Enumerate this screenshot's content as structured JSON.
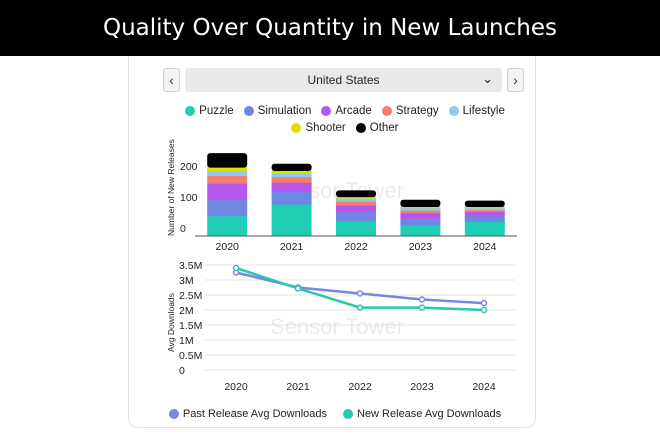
{
  "header": {
    "title": "Quality Over Quantity in New Launches"
  },
  "selector": {
    "country": "United States",
    "prev_icon": "chevron-left-icon",
    "next_icon": "chevron-right-icon"
  },
  "watermark": "Sensor Tower",
  "colors": {
    "Puzzle": "#1fcfb4",
    "Simulation": "#6f86e3",
    "Arcade": "#b457ea",
    "Strategy": "#f47e6f",
    "Lifestyle": "#8ec9f2",
    "Shooter": "#dfe000",
    "Other": "#000000",
    "past_line": "#7a86e0",
    "new_line": "#27c9ae"
  },
  "chart_data": [
    {
      "type": "bar",
      "stacked": true,
      "categories": [
        "2020",
        "2021",
        "2022",
        "2023",
        "2024"
      ],
      "ylabel": "Number of New Releases",
      "yticks": [
        "0",
        "100",
        "200"
      ],
      "ylim": [
        0,
        290
      ],
      "legend": [
        "Puzzle",
        "Simulation",
        "Arcade",
        "Strategy",
        "Lifestyle",
        "Shooter",
        "Other"
      ],
      "series": [
        {
          "name": "Puzzle",
          "values": [
            65,
            103,
            48,
            35,
            47
          ]
        },
        {
          "name": "Simulation",
          "values": [
            55,
            40,
            30,
            22,
            18
          ]
        },
        {
          "name": "Arcade",
          "values": [
            50,
            30,
            22,
            18,
            14
          ]
        },
        {
          "name": "Strategy",
          "values": [
            25,
            18,
            12,
            8,
            6
          ]
        },
        {
          "name": "Lifestyle",
          "values": [
            15,
            12,
            10,
            8,
            6
          ]
        },
        {
          "name": "Shooter",
          "values": [
            12,
            8,
            5,
            4,
            4
          ]
        },
        {
          "name": "Other",
          "values": [
            45,
            22,
            20,
            22,
            19
          ]
        }
      ]
    },
    {
      "type": "line",
      "categories": [
        "2020",
        "2021",
        "2022",
        "2023",
        "2024"
      ],
      "ylabel": "Avg Downloads",
      "yticks": [
        "0",
        "0.5M",
        "1M",
        "1.5M",
        "2M",
        "2.5M",
        "3M",
        "3.5M"
      ],
      "ylim": [
        0,
        3500000
      ],
      "series": [
        {
          "name": "Past Release Avg Downloads",
          "values": [
            3250000,
            2750000,
            2550000,
            2350000,
            2230000
          ]
        },
        {
          "name": "New Release Avg Downloads",
          "values": [
            3400000,
            2720000,
            2080000,
            2080000,
            2000000
          ]
        }
      ]
    }
  ]
}
